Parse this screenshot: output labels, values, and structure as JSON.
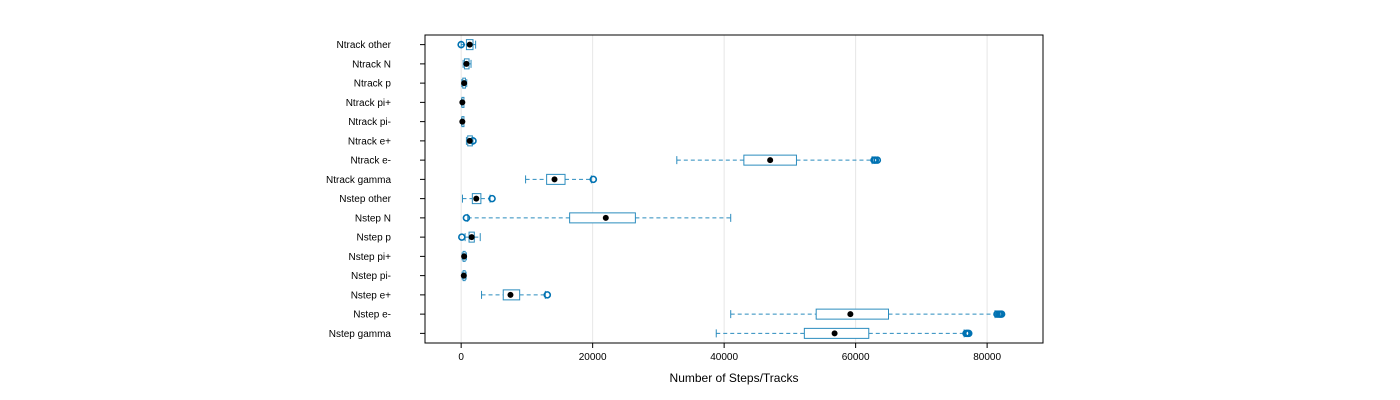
{
  "chart_data": {
    "type": "boxplot",
    "orientation": "horizontal",
    "xlabel": "Number of Steps/Tracks",
    "xlim": [
      -5500,
      88500
    ],
    "x_ticks": [
      0,
      20000,
      40000,
      60000,
      80000
    ],
    "x_tick_labels": [
      "0",
      "20000",
      "40000",
      "60000",
      "80000"
    ],
    "grid": "vertical",
    "colors": {
      "box": "#2b8cbe",
      "median": "#000000",
      "outlier": "#0072b2",
      "grid": "#e6e6e6",
      "frame": "#000000"
    },
    "categories": [
      "Nstep gamma",
      "Nstep e-",
      "Nstep e+",
      "Nstep pi-",
      "Nstep pi+",
      "Nstep p",
      "Nstep N",
      "Nstep other",
      "Ntrack gamma",
      "Ntrack e-",
      "Ntrack e+",
      "Ntrack pi-",
      "Ntrack pi+",
      "Ntrack p",
      "Ntrack N",
      "Ntrack other"
    ],
    "boxes": [
      {
        "label": "Nstep gamma",
        "whisker_low": 38800,
        "q1": 52200,
        "median": 56800,
        "q3": 62000,
        "whisker_high": 76500,
        "outliers": [
          76800,
          77000,
          77200
        ]
      },
      {
        "label": "Nstep e-",
        "whisker_low": 41000,
        "q1": 54000,
        "median": 59200,
        "q3": 65000,
        "whisker_high": 81200,
        "outliers": [
          81500,
          81800,
          82000,
          82200
        ]
      },
      {
        "label": "Nstep e+",
        "whisker_low": 3100,
        "q1": 6400,
        "median": 7500,
        "q3": 8900,
        "whisker_high": 12800,
        "outliers": [
          13100
        ]
      },
      {
        "label": "Nstep pi-",
        "whisker_low": 150,
        "q1": 300,
        "median": 400,
        "q3": 550,
        "whisker_high": 750,
        "outliers": []
      },
      {
        "label": "Nstep pi+",
        "whisker_low": 150,
        "q1": 300,
        "median": 450,
        "q3": 600,
        "whisker_high": 800,
        "outliers": []
      },
      {
        "label": "Nstep p",
        "whisker_low": 600,
        "q1": 1200,
        "median": 1600,
        "q3": 2000,
        "whisker_high": 2900,
        "outliers": [
          100
        ]
      },
      {
        "label": "Nstep N",
        "whisker_low": 1000,
        "q1": 16500,
        "median": 22000,
        "q3": 26500,
        "whisker_high": 41000,
        "outliers": [
          800
        ]
      },
      {
        "label": "Nstep other",
        "whisker_low": 200,
        "q1": 1700,
        "median": 2300,
        "q3": 3000,
        "whisker_high": 4400,
        "outliers": [
          4700
        ]
      },
      {
        "label": "Ntrack gamma",
        "whisker_low": 9800,
        "q1": 13000,
        "median": 14200,
        "q3": 15800,
        "whisker_high": 19800,
        "outliers": [
          20100
        ]
      },
      {
        "label": "Ntrack e-",
        "whisker_low": 32800,
        "q1": 43000,
        "median": 47000,
        "q3": 51000,
        "whisker_high": 62500,
        "outliers": [
          62800,
          63000,
          63300
        ]
      },
      {
        "label": "Ntrack e+",
        "whisker_low": 800,
        "q1": 1000,
        "median": 1300,
        "q3": 1700,
        "whisker_high": 1800,
        "outliers": [
          1800
        ]
      },
      {
        "label": "Ntrack pi-",
        "whisker_low": 50,
        "q1": 120,
        "median": 180,
        "q3": 250,
        "whisker_high": 350,
        "outliers": []
      },
      {
        "label": "Ntrack pi+",
        "whisker_low": 50,
        "q1": 120,
        "median": 180,
        "q3": 250,
        "whisker_high": 350,
        "outliers": []
      },
      {
        "label": "Ntrack p",
        "whisker_low": 100,
        "q1": 250,
        "median": 450,
        "q3": 650,
        "whisker_high": 850,
        "outliers": []
      },
      {
        "label": "Ntrack N",
        "whisker_low": 300,
        "q1": 500,
        "median": 800,
        "q3": 1200,
        "whisker_high": 1500,
        "outliers": []
      },
      {
        "label": "Ntrack other",
        "whisker_low": 0,
        "q1": 800,
        "median": 1300,
        "q3": 1800,
        "whisker_high": 2200,
        "outliers": [
          0
        ]
      }
    ]
  }
}
